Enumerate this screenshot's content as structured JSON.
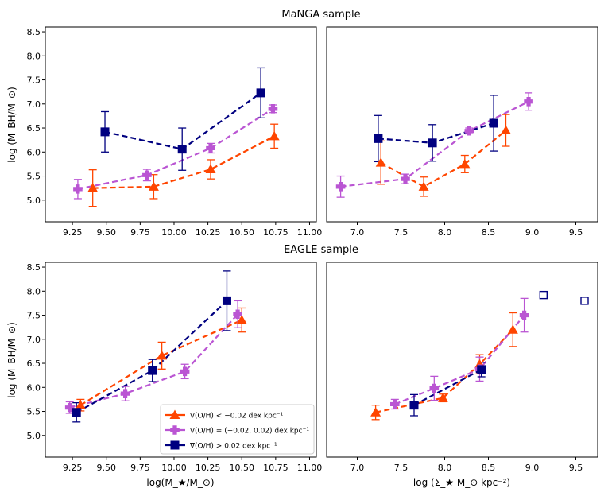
{
  "titles": {
    "top": "MaNGA sample",
    "bottom": "EAGLE sample"
  },
  "axis_labels": {
    "y_top": "log (M_BH/M_⊙)",
    "y_bottom": "log (M_BH/M_⊙)",
    "x_mass": "log(M_★/M_⊙)",
    "x_density": "log (Σ_★ M_⊙ kpc⁻²)"
  },
  "legend": [
    {
      "id": "neg",
      "label": "∇(O/H) < −0.02 dex kpc⁻¹"
    },
    {
      "id": "flat",
      "label": "∇(O/H) = (−0.02, 0.02) dex kpc⁻¹"
    },
    {
      "id": "pos",
      "label": "∇(O/H) > 0.02 dex kpc⁻¹"
    }
  ],
  "colors": {
    "neg": "#ff4500",
    "flat": "#ba55d3",
    "pos": "#000080",
    "axis": "#000000"
  },
  "chart_data": [
    {
      "id": "manga-mass",
      "type": "line",
      "title": "MaNGA sample",
      "xlabel": "",
      "ylabel": "log (M_BH/M_⊙)",
      "xlim": [
        9.05,
        11.05
      ],
      "ylim": [
        4.55,
        8.6
      ],
      "xticks": [
        "9.25",
        "9.50",
        "9.75",
        "10.00",
        "10.25",
        "10.50",
        "10.75",
        "11.00"
      ],
      "yticks": [
        "5.0",
        "5.5",
        "6.0",
        "6.5",
        "7.0",
        "7.5",
        "8.0",
        "8.5"
      ],
      "series": [
        {
          "name": "neg",
          "x": [
            9.4,
            9.85,
            10.27,
            10.74
          ],
          "y": [
            5.25,
            5.28,
            5.64,
            6.33
          ],
          "err": [
            0.38,
            0.25,
            0.2,
            0.25
          ]
        },
        {
          "name": "flat",
          "x": [
            9.29,
            9.8,
            10.27,
            10.73
          ],
          "y": [
            5.23,
            5.52,
            6.08,
            6.9
          ],
          "err": [
            0.2,
            0.12,
            0.1,
            0.08
          ]
        },
        {
          "name": "pos",
          "x": [
            9.49,
            10.06,
            10.64
          ],
          "y": [
            6.42,
            6.06,
            7.23
          ],
          "err": [
            0.42,
            0.44,
            0.52
          ]
        }
      ],
      "open_points": []
    },
    {
      "id": "manga-density",
      "type": "line",
      "title": "MaNGA sample",
      "xlabel": "",
      "ylabel": "",
      "xlim": [
        6.65,
        9.75
      ],
      "ylim": [
        4.55,
        8.6
      ],
      "xticks": [
        "7.0",
        "7.5",
        "8.0",
        "8.5",
        "9.0",
        "9.5"
      ],
      "yticks": [],
      "series": [
        {
          "name": "neg",
          "x": [
            7.27,
            7.76,
            8.23,
            8.7
          ],
          "y": [
            5.78,
            5.28,
            5.75,
            6.45
          ],
          "err": [
            0.45,
            0.2,
            0.18,
            0.33
          ]
        },
        {
          "name": "flat",
          "x": [
            6.81,
            7.55,
            8.28,
            8.96
          ],
          "y": [
            5.28,
            5.44,
            6.44,
            7.05
          ],
          "err": [
            0.22,
            0.1,
            0.06,
            0.18
          ]
        },
        {
          "name": "pos",
          "x": [
            7.24,
            7.86,
            8.56
          ],
          "y": [
            6.28,
            6.19,
            6.6
          ],
          "err": [
            0.48,
            0.38,
            0.58
          ]
        }
      ],
      "open_points": []
    },
    {
      "id": "eagle-mass",
      "type": "line",
      "title": "EAGLE sample",
      "xlabel": "log(M_★/M_⊙)",
      "ylabel": "log (M_BH/M_⊙)",
      "xlim": [
        9.05,
        11.05
      ],
      "ylim": [
        4.55,
        8.6
      ],
      "xticks": [
        "9.25",
        "9.50",
        "9.75",
        "10.00",
        "10.25",
        "10.50",
        "10.75",
        "11.00"
      ],
      "yticks": [
        "5.0",
        "5.5",
        "6.0",
        "6.5",
        "7.0",
        "7.5",
        "8.0",
        "8.5"
      ],
      "series": [
        {
          "name": "neg",
          "x": [
            9.31,
            9.91,
            10.5
          ],
          "y": [
            5.63,
            6.66,
            7.4
          ],
          "err": [
            0.12,
            0.28,
            0.25
          ]
        },
        {
          "name": "flat",
          "x": [
            9.23,
            9.64,
            10.08,
            10.47
          ],
          "y": [
            5.58,
            5.87,
            6.33,
            7.52
          ],
          "err": [
            0.12,
            0.15,
            0.15,
            0.28
          ]
        },
        {
          "name": "pos",
          "x": [
            9.28,
            9.84,
            10.39
          ],
          "y": [
            5.48,
            6.35,
            7.8
          ],
          "err": [
            0.2,
            0.23,
            0.62
          ]
        }
      ],
      "open_points": []
    },
    {
      "id": "eagle-density",
      "type": "line",
      "title": "EAGLE sample",
      "xlabel": "log (Σ_★ M_⊙ kpc⁻²)",
      "ylabel": "",
      "xlim": [
        6.65,
        9.75
      ],
      "ylim": [
        4.55,
        8.6
      ],
      "xticks": [
        "7.0",
        "7.5",
        "8.0",
        "8.5",
        "9.0",
        "9.5"
      ],
      "yticks": [],
      "series": [
        {
          "name": "neg",
          "x": [
            7.21,
            7.98,
            8.4,
            8.78
          ],
          "y": [
            5.48,
            5.78,
            6.48,
            7.2
          ],
          "err": [
            0.15,
            0.08,
            0.2,
            0.35
          ]
        },
        {
          "name": "flat",
          "x": [
            7.43,
            7.88,
            8.4,
            8.91
          ],
          "y": [
            5.65,
            5.98,
            6.38,
            7.5
          ],
          "err": [
            0.1,
            0.25,
            0.25,
            0.35
          ]
        },
        {
          "name": "pos",
          "x": [
            7.65,
            8.42
          ],
          "y": [
            5.63,
            6.37
          ],
          "err": [
            0.22,
            0.15
          ]
        }
      ],
      "open_points": [
        {
          "name": "pos",
          "x": 9.13,
          "y": 7.92
        },
        {
          "name": "pos",
          "x": 9.6,
          "y": 7.8
        }
      ]
    }
  ]
}
